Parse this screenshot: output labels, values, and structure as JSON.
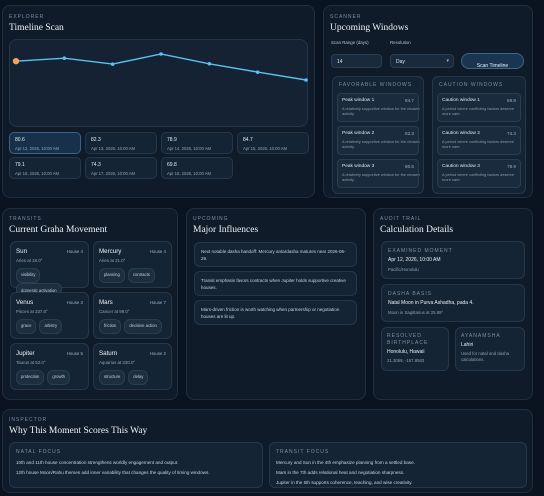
{
  "explorer": {
    "eyebrow": "EXPLORER",
    "title": "Timeline Scan",
    "chart_data": {
      "type": "line",
      "x": [
        "Apr 12, 2026, 10:00 AM",
        "Apr 13, 2026, 10:00 AM",
        "Apr 14, 2026, 10:00 AM",
        "Apr 15, 2026, 10:00 AM",
        "Apr 16, 2026, 10:00 AM",
        "Apr 17, 2026, 10:00 AM",
        "Apr 18, 2026, 10:00 AM"
      ],
      "values": [
        80.6,
        82.3,
        78.9,
        84.7,
        79.1,
        74.3,
        69.8
      ],
      "highlight_index": 0
    },
    "points": [
      {
        "value": "80.6",
        "date": "Apr 12, 2026, 10:00 AM"
      },
      {
        "value": "82.3",
        "date": "Apr 13, 2026, 10:00 AM"
      },
      {
        "value": "78.9",
        "date": "Apr 14, 2026, 10:00 AM"
      },
      {
        "value": "84.7",
        "date": "Apr 15, 2026, 10:00 AM"
      },
      {
        "value": "79.1",
        "date": "Apr 16, 2026, 10:00 AM"
      },
      {
        "value": "74.3",
        "date": "Apr 17, 2026, 10:00 AM"
      },
      {
        "value": "69.8",
        "date": "Apr 18, 2026, 10:00 AM"
      }
    ]
  },
  "scanner": {
    "eyebrow": "SCANNER",
    "title": "Upcoming Windows",
    "range_label": "Scan Range (days)",
    "range_value": "14",
    "resolution_label": "Resolution",
    "resolution_value": "Day",
    "scan_button": "Scan Timeline",
    "favorable": {
      "heading": "FAVORABLE WINDOWS",
      "items": [
        {
          "name": "Peak window 1",
          "score": "84.7",
          "desc": "A relatively supportive window for the chosen activity."
        },
        {
          "name": "Peak window 2",
          "score": "82.3",
          "desc": "A relatively supportive window for the chosen activity."
        },
        {
          "name": "Peak window 3",
          "score": "80.6",
          "desc": "A relatively supportive window for the chosen activity."
        }
      ]
    },
    "caution": {
      "heading": "CAUTION WINDOWS",
      "items": [
        {
          "name": "Caution window 1",
          "score": "69.8",
          "desc": "A period where conflicting factors deserve more care."
        },
        {
          "name": "Caution window 2",
          "score": "74.3",
          "desc": "A period where conflicting factors deserve more care."
        },
        {
          "name": "Caution window 3",
          "score": "78.9",
          "desc": "A period where conflicting factors deserve more care."
        }
      ]
    }
  },
  "transits": {
    "eyebrow": "TRANSITS",
    "title": "Current Graha Movement",
    "planets": [
      {
        "name": "Sun",
        "house": "House 4",
        "sign": "Aries at 18.0°",
        "tags": [
          "visibility",
          "domestic activation"
        ]
      },
      {
        "name": "Mercury",
        "house": "House 4",
        "sign": "Aries at 21.0°",
        "tags": [
          "planning",
          "contracts"
        ]
      },
      {
        "name": "Venus",
        "house": "House 3",
        "sign": "Pisces at 337.0°",
        "tags": [
          "grace",
          "artistry"
        ]
      },
      {
        "name": "Mars",
        "house": "House 7",
        "sign": "Cancer at 99.0°",
        "tags": [
          "friction",
          "decisive action"
        ]
      },
      {
        "name": "Jupiter",
        "house": "House 5",
        "sign": "Taurus at 52.0°",
        "tags": [
          "protection",
          "growth"
        ]
      },
      {
        "name": "Saturn",
        "house": "House 2",
        "sign": "Aquarius at 330.0°",
        "tags": [
          "structure",
          "delay"
        ]
      }
    ]
  },
  "upcoming": {
    "eyebrow": "UPCOMING",
    "title": "Major Influences",
    "items": [
      "Next notable dasha handoff: Mercury antardasha matures near 2026-06-29.",
      "Transit emphasis favors contracts when Jupiter holds supportive creative houses.",
      "Mars-driven friction is worth watching when partnership or negotiation houses are lit up."
    ]
  },
  "audit": {
    "eyebrow": "AUDIT TRAIL",
    "title": "Calculation Details",
    "examined": {
      "label": "EXAMINED MOMENT",
      "value": "Apr 12, 2026, 10:00 AM",
      "sub": "Pacific/Honolulu"
    },
    "dasha": {
      "label": "DASHA BASIS",
      "value": "Natal Moon in Purva Ashadha, pada 4.",
      "sub": "Moon in Sagittarius at 25.89°"
    },
    "birthplace": {
      "label": "RESOLVED BIRTHPLACE",
      "value": "Honolulu, Hawaii",
      "sub": "21.3069, -157.8583"
    },
    "ayanamsha": {
      "label": "AYANAMSHA",
      "value": "Lahiri",
      "sub": "Used for natal and dasha calculations."
    }
  },
  "inspector": {
    "eyebrow": "INSPECTOR",
    "title": "Why This Moment Scores This Way",
    "natal": {
      "heading": "NATAL FOCUS",
      "lines": [
        "10th and 11th house concentration strengthens worldly engagement and output.",
        "12th house Moon/Rahu themes add inner variability that changes the quality of timing windows."
      ]
    },
    "transit": {
      "heading": "TRANSIT FOCUS",
      "lines": [
        "Mercury and Sun in the 4th emphasize planning from a settled base.",
        "Mars in the 7th adds relational heat and negotiation sharpness.",
        "Jupiter in the 5th supports coherence, teaching, and wise creativity."
      ]
    }
  },
  "colors": {
    "accent": "#5bc0eb",
    "highlight": "#f0a55a"
  }
}
